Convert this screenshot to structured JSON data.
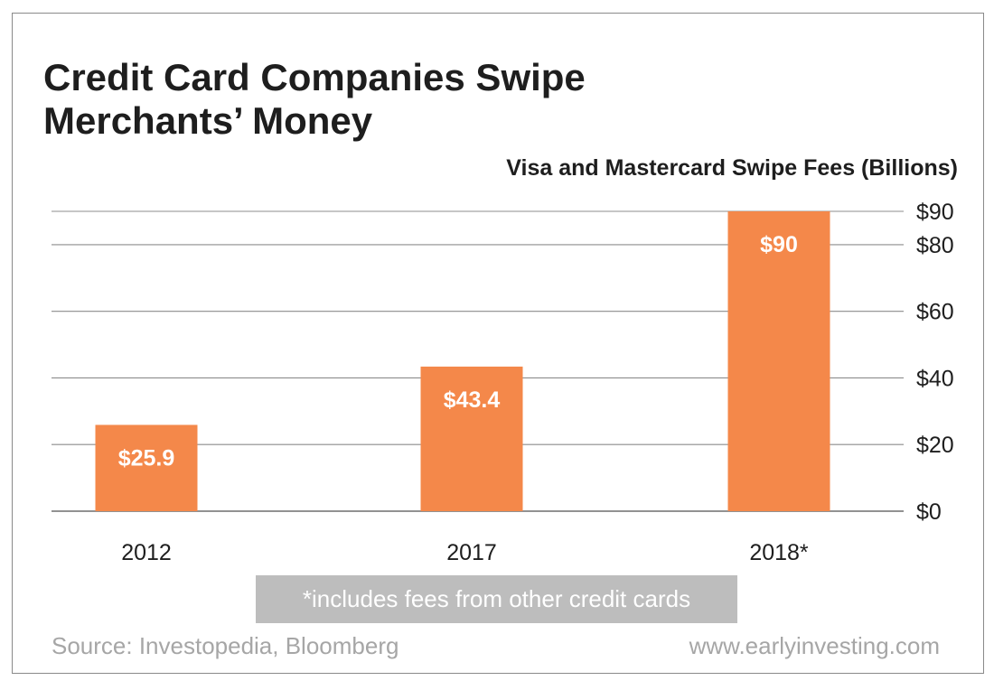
{
  "chart_data": {
    "type": "bar",
    "title": "Credit Card Companies Swipe Merchants’ Money",
    "subtitle": "Visa and Mastercard Swipe Fees (Billions)",
    "categories": [
      "2012",
      "2017",
      "2018*"
    ],
    "values": [
      25.9,
      43.4,
      90
    ],
    "value_labels": [
      "$25.9",
      "$43.4",
      "$90"
    ],
    "y_ticks": [
      0,
      20,
      40,
      60,
      80,
      90
    ],
    "y_tick_labels": [
      "$0",
      "$20",
      "$40",
      "$60",
      "$80",
      "$90"
    ],
    "ylim": [
      0,
      90
    ],
    "y_axis_side": "right",
    "grid": true,
    "bar_color": "#f4884a",
    "footnote": "*includes fees from other credit cards",
    "source": "Source: Investopedia, Bloomberg",
    "website": "www.earlyinvesting.com"
  }
}
